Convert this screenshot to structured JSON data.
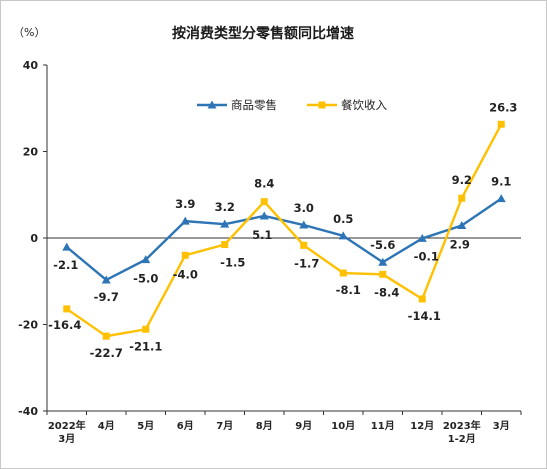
{
  "chart_data": {
    "type": "line",
    "title": "按消费类型分零售额同比增速",
    "unit": "（%）",
    "ylim": [
      -40,
      40
    ],
    "yticks": [
      40,
      20,
      0,
      -20,
      -40
    ],
    "categories": [
      [
        "2022年",
        "3月"
      ],
      [
        "4月"
      ],
      [
        "5月"
      ],
      [
        "6月"
      ],
      [
        "7月"
      ],
      [
        "8月"
      ],
      [
        "9月"
      ],
      [
        "10月"
      ],
      [
        "11月"
      ],
      [
        "12月"
      ],
      [
        "2023年",
        "1-2月"
      ],
      [
        "3月"
      ]
    ],
    "series": [
      {
        "name": "商品零售",
        "color": "#2e75b6",
        "marker": "triangle",
        "values": [
          -2.1,
          -9.7,
          -5.0,
          3.9,
          3.2,
          5.1,
          3.0,
          0.5,
          -5.6,
          -0.1,
          2.9,
          9.1
        ],
        "labels": [
          "-2.1",
          "-9.7",
          "-5.0",
          "3.9",
          "3.2",
          "5.1",
          "3.0",
          "0.5",
          "-5.6",
          "-0.1",
          "2.9",
          "9.1"
        ]
      },
      {
        "name": "餐饮收入",
        "color": "#ffc000",
        "marker": "square",
        "values": [
          -16.4,
          -22.7,
          -21.1,
          -4.0,
          -1.5,
          8.4,
          -1.7,
          -8.1,
          -8.4,
          -14.1,
          9.2,
          26.3
        ],
        "labels": [
          "-16.4",
          "-22.7",
          "-21.1",
          "-4.0",
          "-1.5",
          "8.4",
          "-1.7",
          "-8.1",
          "-8.4",
          "-14.1",
          "9.2",
          "26.3"
        ]
      }
    ],
    "grid": false,
    "legend_position": "top-center"
  }
}
